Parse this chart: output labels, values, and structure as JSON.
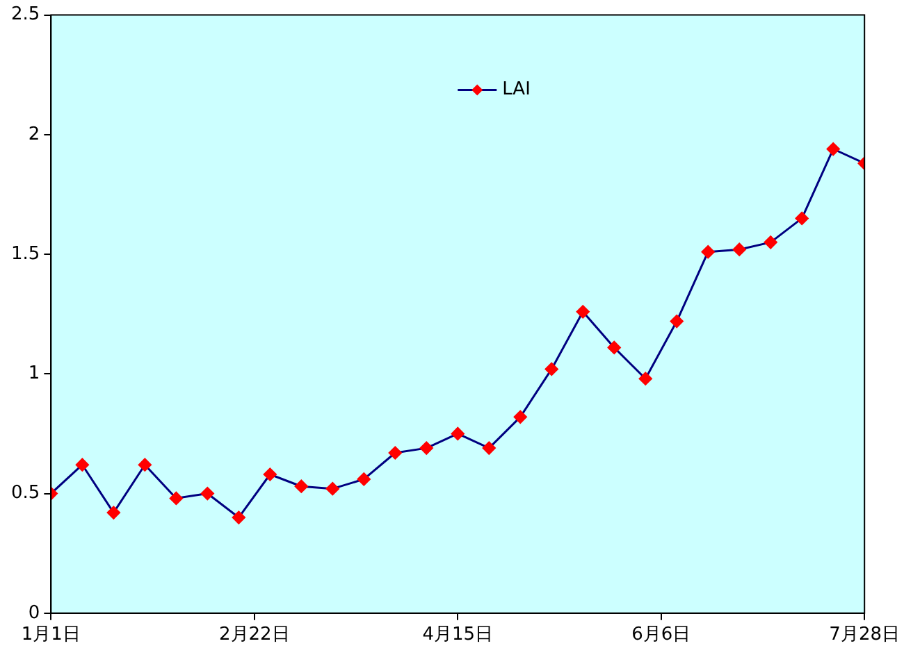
{
  "chart_data": {
    "type": "line",
    "x": [
      "--01-01",
      "--01-09",
      "--01-17",
      "--01-25",
      "--02-02",
      "--02-10",
      "--02-18",
      "--02-26",
      "--03-06",
      "--03-14",
      "--03-22",
      "--03-30",
      "--04-07",
      "--04-15",
      "--04-23",
      "--05-01",
      "--05-09",
      "--05-17",
      "--05-25",
      "--06-02",
      "--06-10",
      "--06-18",
      "--06-26",
      "--07-04",
      "--07-12",
      "--07-20",
      "--07-28"
    ],
    "series": [
      {
        "name": "LAI",
        "color": "#000080",
        "values": [
          0.5,
          0.62,
          0.42,
          0.62,
          0.48,
          0.5,
          0.4,
          0.58,
          0.53,
          0.52,
          0.56,
          0.67,
          0.69,
          0.75,
          0.69,
          0.82,
          1.02,
          1.26,
          1.11,
          0.98,
          1.22,
          1.51,
          1.52,
          1.55,
          1.65,
          1.94,
          1.88
        ]
      }
    ],
    "xlim": [
      "--01-01",
      "--07-28"
    ],
    "xticks": [
      {
        "value": "--01-01",
        "label": "1月1日"
      },
      {
        "value": "--02-22",
        "label": "2月22日"
      },
      {
        "value": "--04-15",
        "label": "4月15日"
      },
      {
        "value": "--06-06",
        "label": "6月6日"
      },
      {
        "value": "--07-28",
        "label": "7月28日"
      }
    ],
    "ylim": [
      0,
      2.5
    ],
    "yticks": [
      0,
      0.5,
      1,
      1.5,
      2,
      2.5
    ],
    "grid": false,
    "legend": "top",
    "marker": "diamond",
    "line_style": "solid"
  }
}
